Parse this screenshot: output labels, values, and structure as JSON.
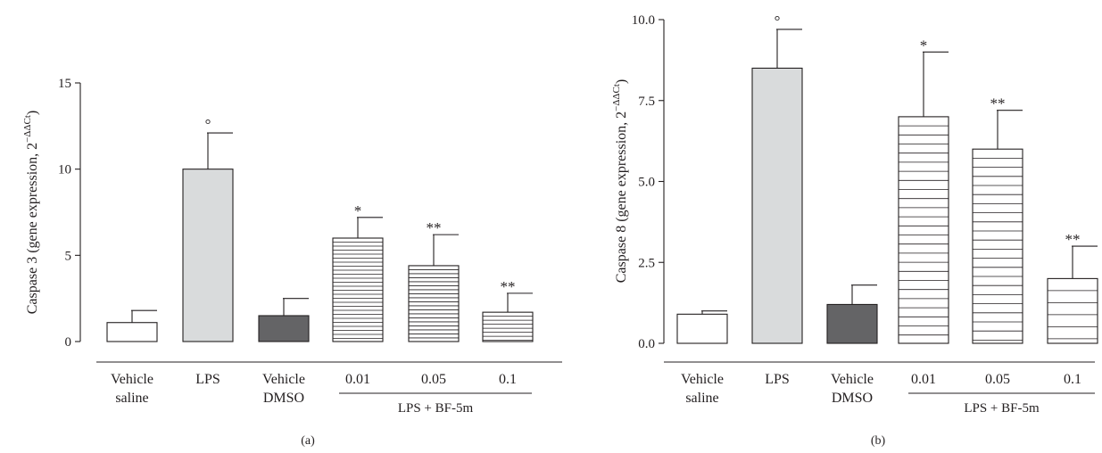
{
  "figure": {
    "panels": [
      {
        "panel_label": "(a)",
        "y_axis_label": "Caspase 3 (gene expression, 2",
        "y_axis_label_exponent": "−ΔΔCt",
        "y_axis_label_close": ")",
        "group_label": "LPS + BF-5m"
      },
      {
        "panel_label": "(b)",
        "y_axis_label": "Caspase 8 (gene expression, 2",
        "y_axis_label_exponent": "−ΔΔCt",
        "y_axis_label_close": ")",
        "group_label": "LPS + BF-5m"
      }
    ]
  },
  "chart_data": [
    {
      "type": "bar",
      "categories": [
        [
          "Vehicle",
          "saline"
        ],
        [
          "LPS"
        ],
        [
          "Vehicle",
          "DMSO"
        ],
        [
          "0.01"
        ],
        [
          "0.05"
        ],
        [
          "0.1"
        ]
      ],
      "values": [
        1.1,
        10.0,
        1.5,
        6.0,
        4.4,
        1.7
      ],
      "error": [
        0.7,
        2.1,
        1.0,
        1.2,
        1.8,
        1.1
      ],
      "annotations": [
        "",
        "°",
        "",
        "*",
        "**",
        "**"
      ],
      "fills": [
        "white",
        "lightgray",
        "darkgray",
        "hstripe-dense",
        "hstripe-dense",
        "hstripe-dense"
      ],
      "ylabel": "Caspase 3 (gene expression, 2−ΔΔCt)",
      "ylim": [
        0,
        15
      ],
      "yticks": [
        "0",
        "5",
        "10",
        "15"
      ],
      "ytick_values": [
        0,
        5,
        10,
        15
      ],
      "group_label": "LPS + BF-5m",
      "group_span": [
        3,
        5
      ],
      "grid": false
    },
    {
      "type": "bar",
      "categories": [
        [
          "Vehicle",
          "saline"
        ],
        [
          "LPS"
        ],
        [
          "Vehicle",
          "DMSO"
        ],
        [
          "0.01"
        ],
        [
          "0.05"
        ],
        [
          "0.1"
        ]
      ],
      "values": [
        0.9,
        8.5,
        1.2,
        7.0,
        6.0,
        2.0
      ],
      "error": [
        0.1,
        1.2,
        0.6,
        2.0,
        1.2,
        1.0
      ],
      "annotations": [
        "",
        "°",
        "",
        "*",
        "**",
        "**"
      ],
      "fills": [
        "white",
        "lightgray",
        "darkgray",
        "hstripe-medium",
        "hstripe-medium",
        "hstripe-sparse"
      ],
      "ylabel": "Caspase 8 (gene expression, 2−ΔΔCt)",
      "ylim": [
        0,
        10
      ],
      "yticks": [
        "0.0",
        "2.5",
        "5.0",
        "7.5",
        "10.0"
      ],
      "ytick_values": [
        0,
        2.5,
        5,
        7.5,
        10
      ],
      "group_label": "LPS + BF-5m",
      "group_span": [
        3,
        5
      ],
      "grid": false
    }
  ],
  "colors": {
    "axis": "#231f20",
    "light_gray_bar": "#d9dbdc",
    "dark_gray_bar": "#646466",
    "white_bar": "#ffffff"
  }
}
